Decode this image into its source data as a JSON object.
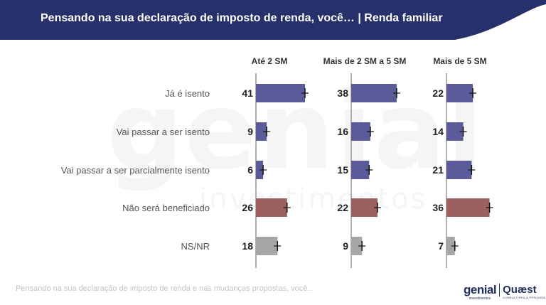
{
  "header": {
    "title": "Pensando na sua declaração de imposto de renda, você… | Renda familiar",
    "banner_color": "#26316b"
  },
  "watermark": {
    "brand_text": "genial",
    "sub_text": "investimentos"
  },
  "chart_data": {
    "type": "bar",
    "orientation": "horizontal",
    "title": "",
    "categories": [
      "Já é isento",
      "Vai passar a ser isento",
      "Vai passar a ser parcialmente isento",
      "Não será beneficiado",
      "NS/NR"
    ],
    "category_colors": [
      "#5b5b9a",
      "#5b5b9a",
      "#5b5b9a",
      "#9b5f60",
      "#a6a6a6"
    ],
    "series": [
      {
        "name": "Até 2 SM",
        "values": [
          41,
          9,
          6,
          26,
          18
        ]
      },
      {
        "name": "Mais de 2 SM a 5 SM",
        "values": [
          38,
          16,
          15,
          22,
          9
        ]
      },
      {
        "name": "Mais de 5 SM",
        "values": [
          22,
          14,
          21,
          36,
          7
        ]
      }
    ],
    "xlim": [
      0,
      41
    ],
    "error_bars": true,
    "grid": false
  },
  "footnote": "Pensando na sua declaração de imposto de renda e nas mudanças propostas, você...",
  "logos": {
    "genial": "genial",
    "genial_sub": "investimentos",
    "quaest": "Quæst",
    "quaest_sub": "CONSULTORIA & PESQUISA"
  }
}
